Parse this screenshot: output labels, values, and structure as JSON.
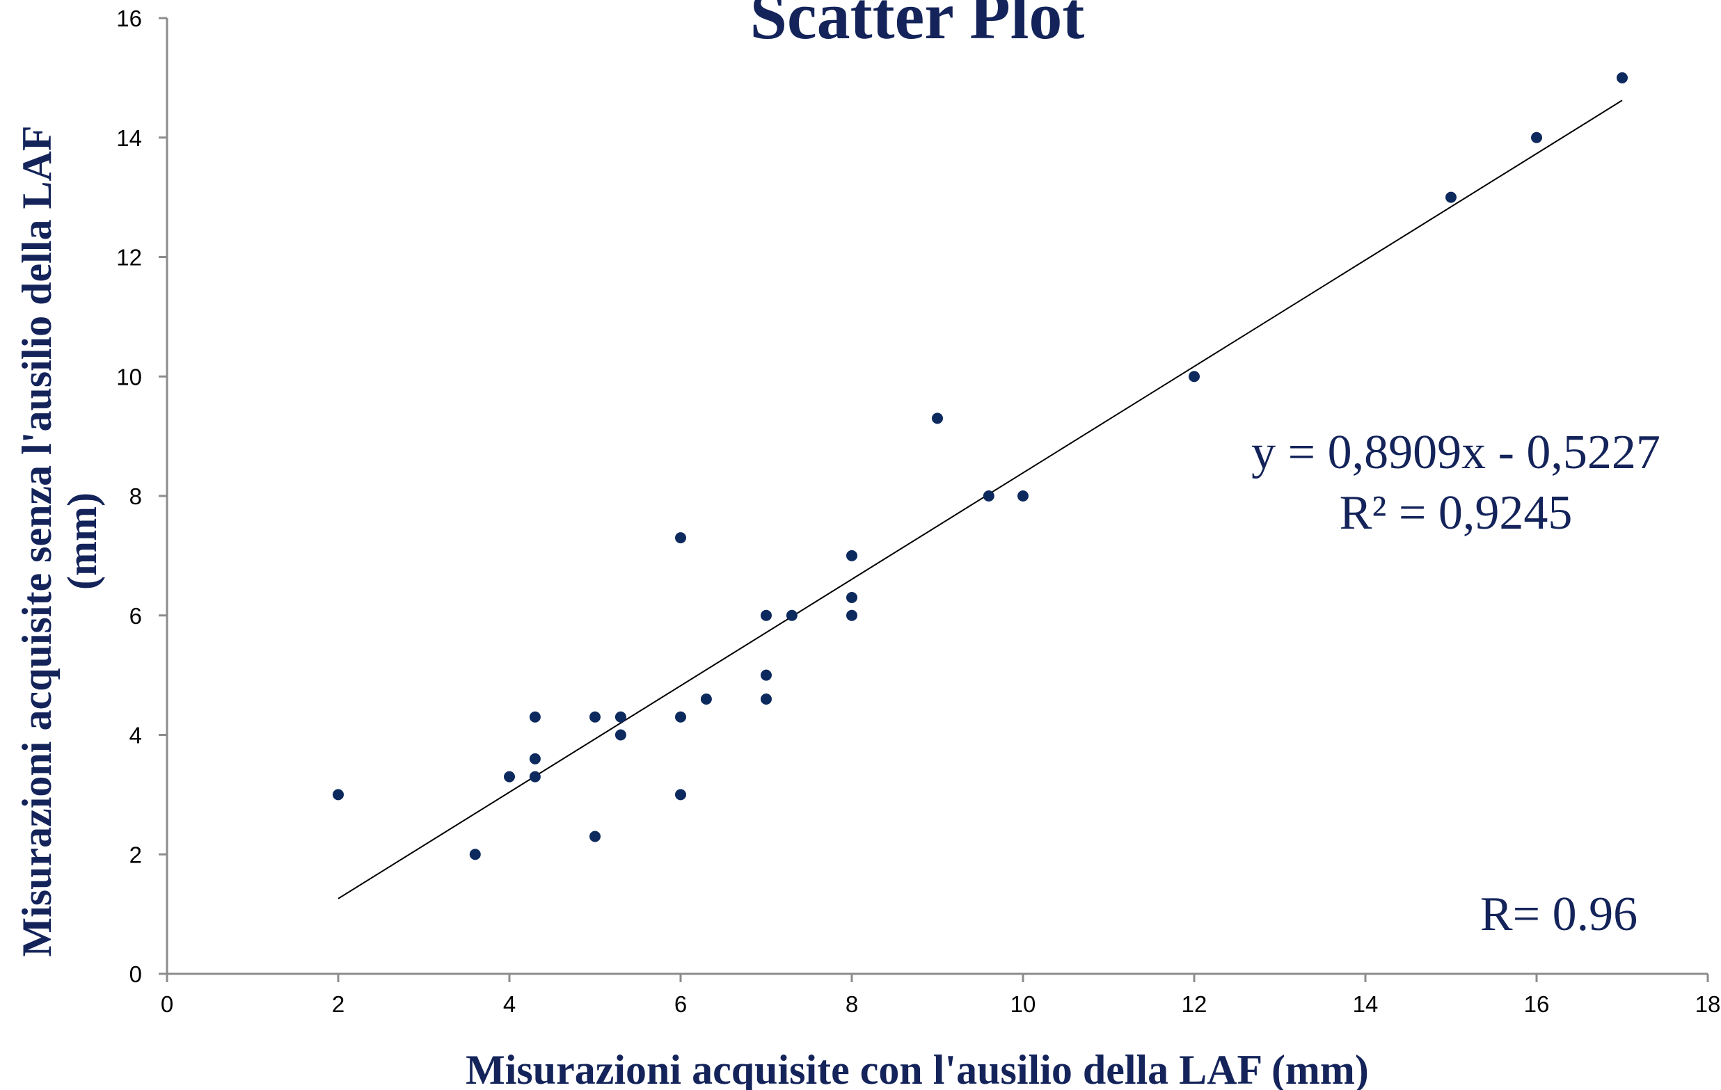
{
  "chart_data": {
    "type": "scatter",
    "title": "Scatter Plot",
    "xlabel": "Misurazioni acquisite con l'ausilio della LAF (mm)",
    "ylabel_line1": "Misurazioni acquisite senza l'ausilio della LAF",
    "ylabel_line2": "(mm)",
    "xlim": [
      0,
      18
    ],
    "ylim": [
      0,
      16
    ],
    "x_ticks": [
      0,
      2,
      4,
      6,
      8,
      10,
      12,
      14,
      16,
      18
    ],
    "y_ticks": [
      0,
      2,
      4,
      6,
      8,
      10,
      12,
      14,
      16
    ],
    "grid": false,
    "legend": "none",
    "marker_color": "#0d2a5e",
    "series": [
      {
        "points": [
          {
            "x": 2,
            "y": 3
          },
          {
            "x": 3.6,
            "y": 2
          },
          {
            "x": 4,
            "y": 3.3
          },
          {
            "x": 4.3,
            "y": 3.3
          },
          {
            "x": 4.3,
            "y": 3.6
          },
          {
            "x": 4.3,
            "y": 4.3
          },
          {
            "x": 5,
            "y": 4.3
          },
          {
            "x": 5,
            "y": 2.3
          },
          {
            "x": 5.3,
            "y": 4.3
          },
          {
            "x": 5.3,
            "y": 4
          },
          {
            "x": 6,
            "y": 7.3
          },
          {
            "x": 6,
            "y": 4.3
          },
          {
            "x": 6,
            "y": 3
          },
          {
            "x": 6.3,
            "y": 4.6
          },
          {
            "x": 7,
            "y": 6
          },
          {
            "x": 7,
            "y": 5
          },
          {
            "x": 7,
            "y": 4.6
          },
          {
            "x": 7.3,
            "y": 6
          },
          {
            "x": 8,
            "y": 7
          },
          {
            "x": 8,
            "y": 6.3
          },
          {
            "x": 8,
            "y": 6
          },
          {
            "x": 9,
            "y": 9.3
          },
          {
            "x": 9.6,
            "y": 8
          },
          {
            "x": 10,
            "y": 8
          },
          {
            "x": 12,
            "y": 10
          },
          {
            "x": 15,
            "y": 13
          },
          {
            "x": 16,
            "y": 14
          },
          {
            "x": 17,
            "y": 15
          }
        ]
      }
    ],
    "trendline": {
      "type": "linear",
      "slope": 0.8909,
      "intercept": -0.5227,
      "x_range": [
        2,
        17
      ],
      "color": "#000000"
    },
    "annotations": {
      "equation": "y = 0,8909x - 0,5227",
      "r_squared": "R² = 0,9245",
      "r_value": "R= 0.96"
    }
  }
}
